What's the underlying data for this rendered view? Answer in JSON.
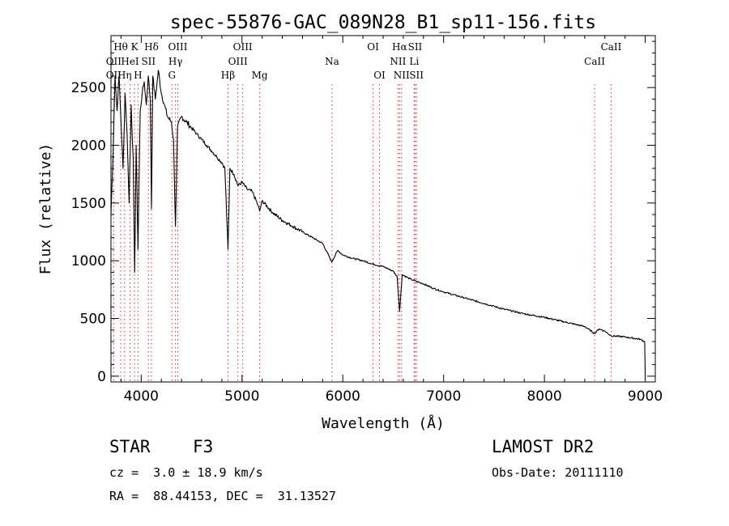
{
  "chart_data": {
    "type": "line",
    "title": "spec-55876-GAC_089N28_B1_sp11-156.fits",
    "xlabel": "Wavelength (Å)",
    "ylabel": "Flux (relative)",
    "xlim": [
      3700,
      9100
    ],
    "ylim": [
      -50,
      2950
    ],
    "xticks": [
      4000,
      5000,
      6000,
      7000,
      8000,
      9000
    ],
    "yticks": [
      0,
      500,
      1000,
      1500,
      2000,
      2500
    ],
    "grid": false,
    "legend": "none",
    "series": [
      {
        "x": [
          3700,
          3720,
          3740,
          3760,
          3780,
          3800,
          3820,
          3840,
          3860,
          3880,
          3900,
          3920,
          3935,
          3950,
          3968,
          3990,
          4010,
          4030,
          4050,
          4070,
          4090,
          4102,
          4115,
          4140,
          4170,
          4200,
          4230,
          4260,
          4300,
          4320,
          4340,
          4360,
          4400,
          4450,
          4500,
          4550,
          4600,
          4650,
          4700,
          4750,
          4800,
          4830,
          4861,
          4880,
          4920,
          4960,
          5000,
          5050,
          5100,
          5150,
          5175,
          5200,
          5300,
          5400,
          5500,
          5600,
          5700,
          5800,
          5890,
          5950,
          6000,
          6100,
          6200,
          6300,
          6400,
          6500,
          6540,
          6563,
          6590,
          6650,
          6700,
          6800,
          6900,
          7000,
          7200,
          7400,
          7600,
          7800,
          8000,
          8200,
          8400,
          8498,
          8542,
          8600,
          8662,
          8800,
          8950,
          8995,
          9000
        ],
        "y": [
          1400,
          1900,
          2600,
          2300,
          2600,
          2200,
          1800,
          2450,
          2100,
          1500,
          2350,
          1900,
          900,
          2000,
          1100,
          2300,
          2450,
          2550,
          2350,
          2600,
          2400,
          1450,
          2600,
          2400,
          2650,
          2450,
          2350,
          2250,
          2200,
          2050,
          1300,
          2150,
          2250,
          2200,
          2150,
          2100,
          2050,
          2000,
          1950,
          1900,
          1850,
          1800,
          1100,
          1800,
          1750,
          1650,
          1680,
          1620,
          1600,
          1500,
          1430,
          1520,
          1420,
          1350,
          1300,
          1250,
          1200,
          1150,
          990,
          1090,
          1050,
          1020,
          1000,
          970,
          950,
          910,
          860,
          560,
          880,
          850,
          830,
          800,
          760,
          730,
          680,
          630,
          580,
          540,
          510,
          470,
          430,
          370,
          410,
          390,
          350,
          340,
          320,
          300,
          0
        ]
      }
    ],
    "lines": [
      {
        "name": "Hθ",
        "x": 3797,
        "row": 0
      },
      {
        "name": "K",
        "x": 3934,
        "row": 0
      },
      {
        "name": "Hδ",
        "x": 4102,
        "row": 0
      },
      {
        "name": "OIII",
        "x": 4363,
        "row": 0
      },
      {
        "name": "OIII",
        "x": 5007,
        "row": 0
      },
      {
        "name": "OI",
        "x": 6300,
        "row": 0
      },
      {
        "name": "Hα",
        "x": 6563,
        "row": 0
      },
      {
        "name": "SII",
        "x": 6717,
        "row": 0
      },
      {
        "name": "CaII",
        "x": 8662,
        "row": 0
      },
      {
        "name": "OII",
        "x": 3727,
        "row": 1
      },
      {
        "name": "HeI",
        "x": 3889,
        "row": 1
      },
      {
        "name": "SII",
        "x": 4072,
        "row": 1
      },
      {
        "name": "Hγ",
        "x": 4340,
        "row": 1
      },
      {
        "name": "OIII",
        "x": 4959,
        "row": 1
      },
      {
        "name": "Na",
        "x": 5893,
        "row": 1
      },
      {
        "name": "NII",
        "x": 6548,
        "row": 1
      },
      {
        "name": "Li",
        "x": 6708,
        "row": 1
      },
      {
        "name": "CaII",
        "x": 8498,
        "row": 1
      },
      {
        "name": "OII",
        "x": 3727,
        "row": 2
      },
      {
        "name": "Hη",
        "x": 3835,
        "row": 2
      },
      {
        "name": "H",
        "x": 3968,
        "row": 2
      },
      {
        "name": "G",
        "x": 4305,
        "row": 2
      },
      {
        "name": "Hβ",
        "x": 4861,
        "row": 2
      },
      {
        "name": "Mg",
        "x": 5175,
        "row": 2
      },
      {
        "name": "OI",
        "x": 6364,
        "row": 2
      },
      {
        "name": "NII",
        "x": 6583,
        "row": 2
      },
      {
        "name": "SII",
        "x": 6731,
        "row": 2
      }
    ]
  },
  "info": {
    "class_label": "STAR",
    "subclass": "F3",
    "survey": "LAMOST DR2",
    "redshift": "cz =  3.0 ± 18.9 km/s",
    "obs_date": "Obs-Date: 20111110",
    "coords": "RA =  88.44153, DEC =  31.13527"
  },
  "colors": {
    "spectrum": "#000000",
    "line_markers": "#d62728"
  }
}
